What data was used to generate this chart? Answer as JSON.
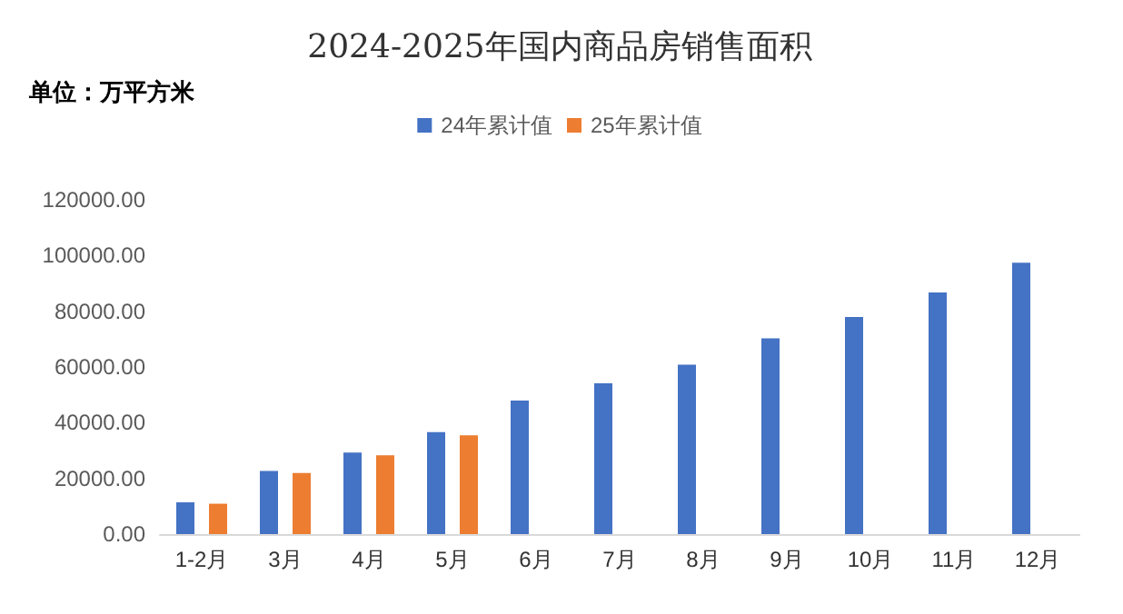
{
  "chart_data": {
    "type": "bar",
    "title": "2024-2025年国内商品房销售面积",
    "annotations": [
      "单位：万平方米"
    ],
    "categories": [
      "1-2月",
      "3月",
      "4月",
      "5月",
      "6月",
      "7月",
      "8月",
      "9月",
      "10月",
      "11月",
      "12月"
    ],
    "series": [
      {
        "name": "24年累计值",
        "color": "#4472c4",
        "values": [
          11400,
          22700,
          29300,
          36600,
          47900,
          54100,
          60800,
          70300,
          77900,
          86700,
          97400
        ]
      },
      {
        "name": "25年累计值",
        "color": "#ed7d31",
        "values": [
          10900,
          21900,
          28300,
          35500,
          null,
          null,
          null,
          null,
          null,
          null,
          null
        ]
      }
    ],
    "ylim": [
      0,
      120000
    ],
    "yticks": [
      {
        "value": 0,
        "label": "0.00"
      },
      {
        "value": 20000,
        "label": "20000.00"
      },
      {
        "value": 40000,
        "label": "40000.00"
      },
      {
        "value": 60000,
        "label": "60000.00"
      },
      {
        "value": 80000,
        "label": "80000.00"
      },
      {
        "value": 100000,
        "label": "100000.00"
      },
      {
        "value": 120000,
        "label": "120000.00"
      }
    ],
    "legend": "top",
    "grid": false
  }
}
